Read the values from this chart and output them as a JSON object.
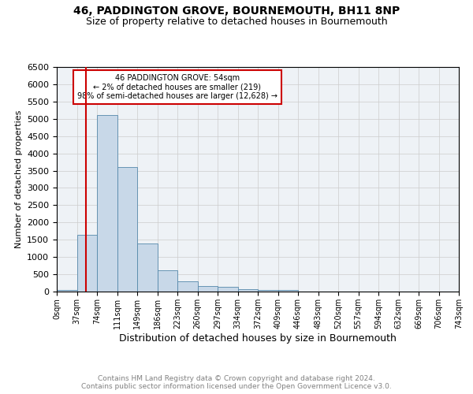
{
  "title": "46, PADDINGTON GROVE, BOURNEMOUTH, BH11 8NP",
  "subtitle": "Size of property relative to detached houses in Bournemouth",
  "xlabel": "Distribution of detached houses by size in Bournemouth",
  "ylabel": "Number of detached properties",
  "annotation_line1": "46 PADDINGTON GROVE: 54sqm",
  "annotation_line2": "← 2% of detached houses are smaller (219)",
  "annotation_line3": "98% of semi-detached houses are larger (12,628) →",
  "property_size": 54,
  "bin_edges": [
    0,
    37,
    74,
    111,
    149,
    186,
    223,
    260,
    297,
    334,
    372,
    409,
    446,
    483,
    520,
    557,
    594,
    632,
    669,
    706,
    743
  ],
  "bar_values": [
    50,
    1650,
    5100,
    3600,
    1400,
    620,
    300,
    150,
    130,
    70,
    50,
    50,
    0,
    0,
    0,
    0,
    0,
    0,
    0,
    0
  ],
  "bar_fill_color": "#c8d8e8",
  "bar_edge_color": "#5588aa",
  "red_line_color": "#cc0000",
  "annotation_box_color": "#cc0000",
  "grid_color": "#cccccc",
  "background_color": "#eef2f6",
  "footer_line1": "Contains HM Land Registry data © Crown copyright and database right 2024.",
  "footer_line2": "Contains public sector information licensed under the Open Government Licence v3.0.",
  "ylim": [
    0,
    6500
  ],
  "yticks": [
    0,
    500,
    1000,
    1500,
    2000,
    2500,
    3000,
    3500,
    4000,
    4500,
    5000,
    5500,
    6000,
    6500
  ]
}
